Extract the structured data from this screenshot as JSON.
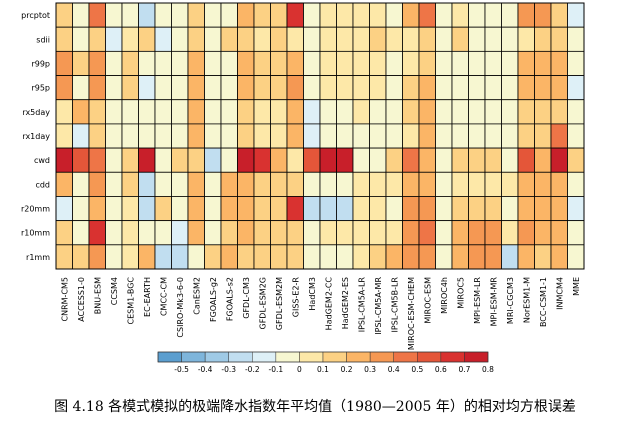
{
  "caption": "图 4.18  各模式模拟的极端降水指数年平均值（1980—2005 年）的相对均方根误差",
  "chart_data": {
    "type": "heatmap",
    "title": "",
    "xlabel": "",
    "ylabel": "",
    "rows": [
      "prcptot",
      "sdii",
      "r99p",
      "r95p",
      "rx5day",
      "rx1day",
      "cwd",
      "cdd",
      "r20mm",
      "r10mm",
      "r1mm"
    ],
    "columns": [
      "CNRM-CM5",
      "ACCESS1-0",
      "BNU-ESM",
      "CCSM4",
      "CESM1-BGC",
      "EC-EARTH",
      "CMCC-CM",
      "CSIRO-Mk3-6-0",
      "CanESM2",
      "FGOALS-g2",
      "FGOALS-s2",
      "GFDL-CM3",
      "GFDL-ESM2G",
      "GFDL-ESM2M",
      "GISS-E2-R",
      "HadCM3",
      "HadGEM2-CC",
      "HadGEM2-ES",
      "IPSL-CM5A-LR",
      "IPSL-CM5A-MR",
      "IPSL-CM5B-LR",
      "MIROC-ESM-CHEM",
      "MIROC-ESM",
      "MIROC4h",
      "MIROC5",
      "MPI-ESM-LR",
      "MPI-ESM-MR",
      "MRI-CGCM3",
      "NorESM1-M",
      "BCC-CSM1-1",
      "INMCM4",
      "MME"
    ],
    "values": [
      [
        0.15,
        -0.05,
        0.45,
        -0.05,
        -0.05,
        -0.3,
        -0.05,
        -0.05,
        0.1,
        -0.05,
        -0.05,
        0.2,
        0.1,
        0.1,
        0.65,
        -0.05,
        0.05,
        0.05,
        0.05,
        0.05,
        -0.1,
        0.2,
        0.4,
        -0.05,
        0.05,
        -0.05,
        -0.05,
        -0.05,
        0.35,
        0.35,
        0.15,
        -0.15
      ],
      [
        0.15,
        -0.05,
        0.15,
        -0.15,
        0.05,
        0.15,
        -0.15,
        -0.05,
        0.1,
        -0.05,
        0.1,
        0.15,
        0.05,
        0.1,
        0.05,
        -0.05,
        0.05,
        0.05,
        0.05,
        0.1,
        0.05,
        0.05,
        0.15,
        -0.05,
        0.1,
        -0.05,
        -0.05,
        -0.05,
        0.05,
        0.15,
        0.15,
        -0.05
      ],
      [
        0.3,
        0.1,
        0.3,
        -0.05,
        0.1,
        -0.1,
        -0.05,
        -0.05,
        0.25,
        -0.05,
        -0.1,
        0.25,
        0.1,
        0.1,
        0.2,
        -0.1,
        0.05,
        0.05,
        0.05,
        0.05,
        -0.05,
        0.05,
        0.15,
        -0.05,
        -0.05,
        -0.05,
        -0.05,
        -0.05,
        0.25,
        0.25,
        0.25,
        -0.1
      ],
      [
        0.3,
        -0.05,
        0.3,
        -0.05,
        0.1,
        -0.15,
        -0.05,
        -0.05,
        0.25,
        -0.05,
        -0.05,
        0.25,
        0.1,
        0.1,
        0.3,
        -0.05,
        0.05,
        0.05,
        0.05,
        0.05,
        -0.05,
        0.15,
        0.2,
        -0.05,
        -0.05,
        -0.05,
        -0.05,
        -0.05,
        0.25,
        0.25,
        0.25,
        -0.15
      ],
      [
        0.05,
        0.2,
        0.15,
        -0.05,
        -0.05,
        -0.05,
        -0.05,
        -0.05,
        0.25,
        -0.05,
        -0.05,
        0.1,
        0.05,
        0.05,
        0.25,
        -0.15,
        -0.05,
        -0.05,
        0.05,
        -0.05,
        -0.05,
        0.15,
        0.25,
        -0.05,
        -0.05,
        -0.05,
        -0.05,
        -0.05,
        0.1,
        0.15,
        0.15,
        -0.05
      ],
      [
        0.05,
        -0.15,
        0.15,
        -0.05,
        -0.05,
        -0.05,
        -0.05,
        -0.05,
        0.25,
        -0.05,
        -0.1,
        0.1,
        0.05,
        0.05,
        0.25,
        -0.15,
        -0.1,
        -0.1,
        -0.1,
        -0.1,
        -0.05,
        0.05,
        0.25,
        -0.05,
        -0.05,
        -0.05,
        -0.05,
        -0.05,
        0.1,
        0.15,
        0.4,
        -0.05
      ],
      [
        0.75,
        0.5,
        0.45,
        -0.05,
        0.15,
        0.75,
        -0.05,
        0.15,
        0.1,
        -0.3,
        -0.05,
        0.75,
        0.6,
        0.25,
        0.05,
        0.5,
        0.75,
        0.75,
        -0.05,
        -0.05,
        0.1,
        0.45,
        0.25,
        -0.05,
        0.1,
        0.15,
        0.15,
        -0.05,
        0.55,
        0.2,
        0.75,
        0.1
      ],
      [
        0.2,
        -0.05,
        0.3,
        -0.1,
        0.1,
        -0.3,
        -0.05,
        -0.1,
        0.25,
        -0.05,
        0.2,
        0.2,
        0.1,
        0.1,
        0.1,
        -0.1,
        -0.05,
        -0.05,
        0.05,
        0.05,
        0.05,
        0.25,
        0.25,
        -0.05,
        0.05,
        0.05,
        0.05,
        0.05,
        0.2,
        0.2,
        0.2,
        -0.05
      ],
      [
        -0.15,
        -0.05,
        0.25,
        -0.1,
        0.05,
        -0.25,
        0.1,
        -0.1,
        0.25,
        -0.05,
        0.2,
        0.2,
        0.1,
        0.1,
        0.65,
        -0.25,
        -0.3,
        -0.3,
        0.05,
        0.05,
        -0.05,
        0.3,
        0.3,
        -0.1,
        0.1,
        0.1,
        0.1,
        -0.1,
        0.25,
        0.25,
        0.25,
        -0.15
      ],
      [
        0.15,
        -0.1,
        0.6,
        -0.05,
        0.05,
        -0.1,
        -0.05,
        -0.15,
        0.25,
        -0.05,
        0.15,
        0.2,
        0.1,
        0.1,
        0.15,
        -0.1,
        0.05,
        0.05,
        0.05,
        0.05,
        0.05,
        0.3,
        0.4,
        -0.1,
        0.2,
        0.3,
        0.3,
        0.05,
        0.3,
        0.2,
        0.2,
        -0.05
      ],
      [
        0.15,
        0.15,
        0.3,
        -0.05,
        0.05,
        0.2,
        -0.3,
        -0.25,
        -0.05,
        0.1,
        0.2,
        0.15,
        0.1,
        0.15,
        0.1,
        -0.05,
        -0.05,
        -0.05,
        0.05,
        0.1,
        0.2,
        0.3,
        0.3,
        -0.05,
        0.2,
        0.3,
        0.3,
        -0.3,
        0.2,
        0.1,
        0.25,
        -0.1
      ]
    ],
    "colorbar": {
      "labels": [
        "-0.5",
        "-0.4",
        "-0.3",
        "-0.2",
        "-0.1",
        "0",
        "0.1",
        "0.2",
        "0.3",
        "0.4",
        "0.5",
        "0.6",
        "0.7",
        "0.8"
      ],
      "bins": [
        -0.6,
        -0.5,
        -0.4,
        -0.3,
        -0.2,
        -0.1,
        0,
        0.1,
        0.2,
        0.3,
        0.4,
        0.5,
        0.6,
        0.7,
        0.8,
        0.9
      ],
      "colors": [
        "#5b9ecf",
        "#7eb5db",
        "#9fcae6",
        "#c1def0",
        "#def0f7",
        "#f7f7d1",
        "#fde8a8",
        "#fcd184",
        "#fbb566",
        "#f59853",
        "#ee7547",
        "#e45639",
        "#d93230",
        "#c81f2a"
      ]
    }
  }
}
